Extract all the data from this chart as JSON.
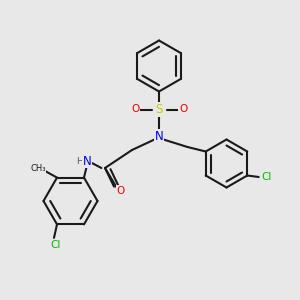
{
  "bg_color": "#e8e8e8",
  "bond_color": "#1a1a1a",
  "bond_width": 1.5,
  "atom_colors": {
    "N": "#0000ee",
    "O": "#ee0000",
    "Cl": "#00bb00",
    "S": "#cccc00",
    "C": "#1a1a1a",
    "H": "#555555"
  },
  "font_size": 7.5
}
